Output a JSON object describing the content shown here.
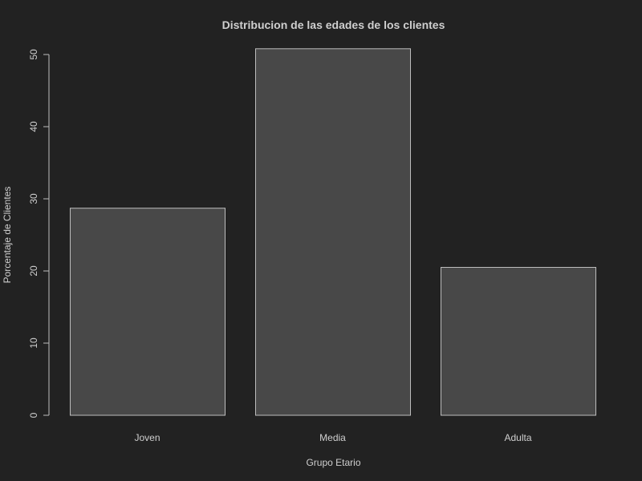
{
  "chart_data": {
    "type": "bar",
    "title": "Distribucion de las edades de los clientes",
    "xlabel": "Grupo Etario",
    "ylabel": "Porcentaje de Clientes",
    "categories": [
      "Joven",
      "Media",
      "Adulta"
    ],
    "values": [
      28.7,
      50.8,
      20.5
    ],
    "ylim": [
      0,
      50
    ],
    "yticks": [
      "0",
      "10",
      "20",
      "30",
      "40",
      "50"
    ],
    "grid": false,
    "legend": "none",
    "colors": {
      "background": "#222222",
      "bar_fill": "#484848",
      "bar_stroke": "#bdbdbd",
      "text": "#cfcfcf",
      "axis": "#bdbdbd"
    }
  }
}
